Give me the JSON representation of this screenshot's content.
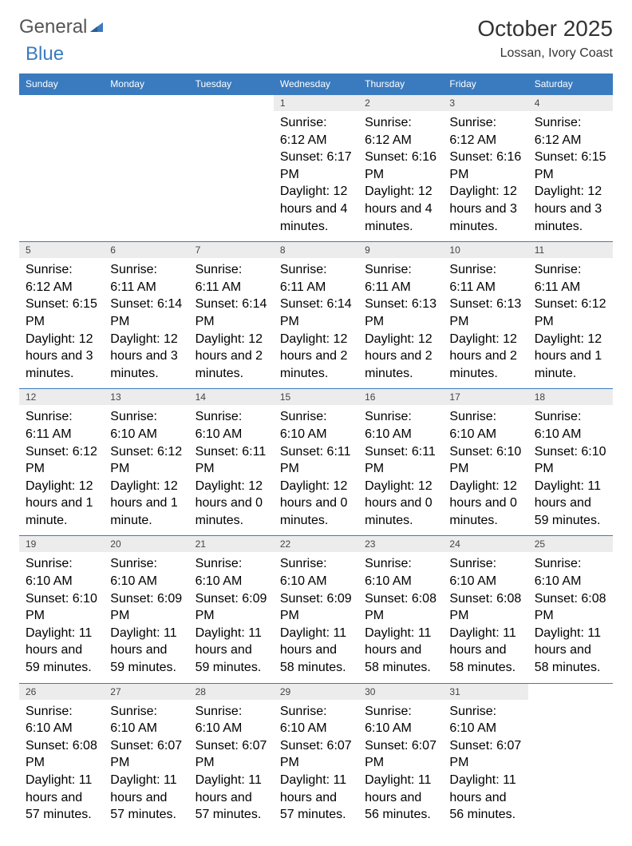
{
  "logo": {
    "prefix": "General",
    "suffix": "Blue"
  },
  "title": "October 2025",
  "location": "Lossan, Ivory Coast",
  "colors": {
    "header_bg": "#3a7bbf",
    "header_fg": "#ffffff",
    "daynum_bg": "#ececec",
    "rule": "#3a7bbf",
    "text": "#333333"
  },
  "daynames": [
    "Sunday",
    "Monday",
    "Tuesday",
    "Wednesday",
    "Thursday",
    "Friday",
    "Saturday"
  ],
  "weeks": [
    {
      "nums": [
        "",
        "",
        "",
        "1",
        "2",
        "3",
        "4"
      ],
      "details": [
        "",
        "",
        "",
        "Sunrise: 6:12 AM\nSunset: 6:17 PM\nDaylight: 12 hours and 4 minutes.",
        "Sunrise: 6:12 AM\nSunset: 6:16 PM\nDaylight: 12 hours and 4 minutes.",
        "Sunrise: 6:12 AM\nSunset: 6:16 PM\nDaylight: 12 hours and 3 minutes.",
        "Sunrise: 6:12 AM\nSunset: 6:15 PM\nDaylight: 12 hours and 3 minutes."
      ]
    },
    {
      "nums": [
        "5",
        "6",
        "7",
        "8",
        "9",
        "10",
        "11"
      ],
      "details": [
        "Sunrise: 6:12 AM\nSunset: 6:15 PM\nDaylight: 12 hours and 3 minutes.",
        "Sunrise: 6:11 AM\nSunset: 6:14 PM\nDaylight: 12 hours and 3 minutes.",
        "Sunrise: 6:11 AM\nSunset: 6:14 PM\nDaylight: 12 hours and 2 minutes.",
        "Sunrise: 6:11 AM\nSunset: 6:14 PM\nDaylight: 12 hours and 2 minutes.",
        "Sunrise: 6:11 AM\nSunset: 6:13 PM\nDaylight: 12 hours and 2 minutes.",
        "Sunrise: 6:11 AM\nSunset: 6:13 PM\nDaylight: 12 hours and 2 minutes.",
        "Sunrise: 6:11 AM\nSunset: 6:12 PM\nDaylight: 12 hours and 1 minute."
      ]
    },
    {
      "nums": [
        "12",
        "13",
        "14",
        "15",
        "16",
        "17",
        "18"
      ],
      "details": [
        "Sunrise: 6:11 AM\nSunset: 6:12 PM\nDaylight: 12 hours and 1 minute.",
        "Sunrise: 6:10 AM\nSunset: 6:12 PM\nDaylight: 12 hours and 1 minute.",
        "Sunrise: 6:10 AM\nSunset: 6:11 PM\nDaylight: 12 hours and 0 minutes.",
        "Sunrise: 6:10 AM\nSunset: 6:11 PM\nDaylight: 12 hours and 0 minutes.",
        "Sunrise: 6:10 AM\nSunset: 6:11 PM\nDaylight: 12 hours and 0 minutes.",
        "Sunrise: 6:10 AM\nSunset: 6:10 PM\nDaylight: 12 hours and 0 minutes.",
        "Sunrise: 6:10 AM\nSunset: 6:10 PM\nDaylight: 11 hours and 59 minutes."
      ]
    },
    {
      "nums": [
        "19",
        "20",
        "21",
        "22",
        "23",
        "24",
        "25"
      ],
      "details": [
        "Sunrise: 6:10 AM\nSunset: 6:10 PM\nDaylight: 11 hours and 59 minutes.",
        "Sunrise: 6:10 AM\nSunset: 6:09 PM\nDaylight: 11 hours and 59 minutes.",
        "Sunrise: 6:10 AM\nSunset: 6:09 PM\nDaylight: 11 hours and 59 minutes.",
        "Sunrise: 6:10 AM\nSunset: 6:09 PM\nDaylight: 11 hours and 58 minutes.",
        "Sunrise: 6:10 AM\nSunset: 6:08 PM\nDaylight: 11 hours and 58 minutes.",
        "Sunrise: 6:10 AM\nSunset: 6:08 PM\nDaylight: 11 hours and 58 minutes.",
        "Sunrise: 6:10 AM\nSunset: 6:08 PM\nDaylight: 11 hours and 58 minutes."
      ]
    },
    {
      "nums": [
        "26",
        "27",
        "28",
        "29",
        "30",
        "31",
        ""
      ],
      "details": [
        "Sunrise: 6:10 AM\nSunset: 6:08 PM\nDaylight: 11 hours and 57 minutes.",
        "Sunrise: 6:10 AM\nSunset: 6:07 PM\nDaylight: 11 hours and 57 minutes.",
        "Sunrise: 6:10 AM\nSunset: 6:07 PM\nDaylight: 11 hours and 57 minutes.",
        "Sunrise: 6:10 AM\nSunset: 6:07 PM\nDaylight: 11 hours and 57 minutes.",
        "Sunrise: 6:10 AM\nSunset: 6:07 PM\nDaylight: 11 hours and 56 minutes.",
        "Sunrise: 6:10 AM\nSunset: 6:07 PM\nDaylight: 11 hours and 56 minutes.",
        ""
      ]
    }
  ]
}
